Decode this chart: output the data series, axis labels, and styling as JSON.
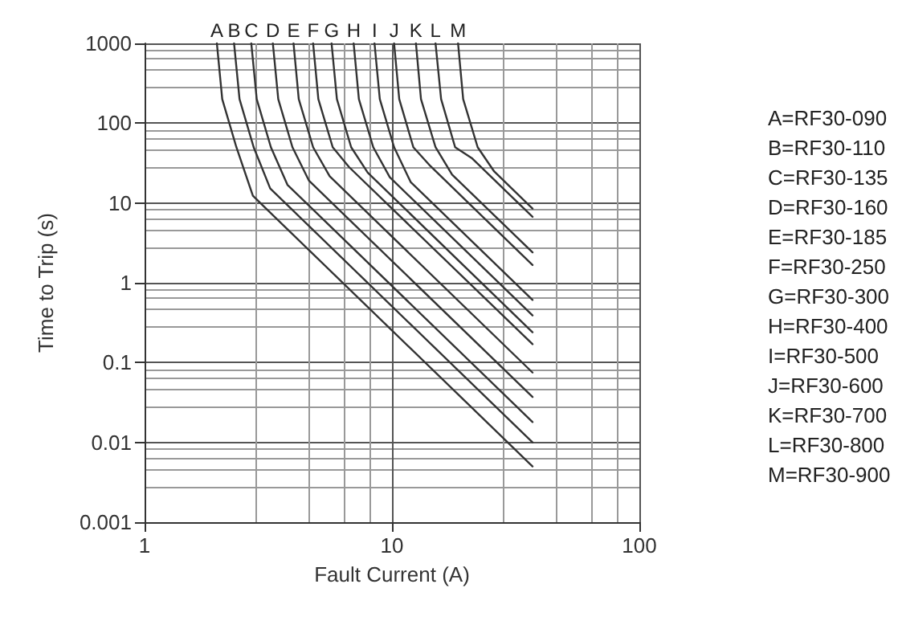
{
  "chart_data": {
    "type": "line",
    "xlabel": "Fault Current (A)",
    "ylabel": "Time to Trip (s)",
    "log": "xy",
    "grid": true,
    "marker": "none",
    "line_style": "solid",
    "legend": false,
    "xlim": [
      1,
      100
    ],
    "xticks": [
      1,
      10,
      100
    ],
    "ylim": [
      0.001,
      1000
    ],
    "yticks": [
      0.001,
      0.01,
      0.1,
      1,
      10,
      100,
      1000
    ],
    "series": [
      {
        "name": "A",
        "color": "#333333",
        "x": [
          1.96,
          2.06,
          2.35,
          2.74,
          37
        ],
        "values": [
          1000,
          200,
          50,
          12.3,
          0.005
        ]
      },
      {
        "name": "B",
        "color": "#333333",
        "x": [
          2.3,
          2.42,
          2.76,
          3.22,
          37
        ],
        "values": [
          1000,
          200,
          50,
          15.2,
          0.01
        ]
      },
      {
        "name": "C",
        "color": "#333333",
        "x": [
          2.7,
          2.84,
          3.24,
          3.78,
          37
        ],
        "values": [
          1000,
          200,
          50,
          16.9,
          0.018
        ]
      },
      {
        "name": "D",
        "color": "#333333",
        "x": [
          3.3,
          3.47,
          3.96,
          4.62,
          37
        ],
        "values": [
          1000,
          200,
          50,
          19,
          0.037
        ]
      },
      {
        "name": "E",
        "color": "#333333",
        "x": [
          4,
          4.2,
          4.8,
          5.6,
          37
        ],
        "values": [
          1000,
          200,
          50,
          21.6,
          0.075
        ]
      },
      {
        "name": "F",
        "color": "#333333",
        "x": [
          4.8,
          5.04,
          5.76,
          6.72,
          37
        ],
        "values": [
          1000,
          200,
          50,
          28,
          0.17
        ]
      },
      {
        "name": "G",
        "color": "#333333",
        "x": [
          5.7,
          5.99,
          6.84,
          7.98,
          37
        ],
        "values": [
          1000,
          200,
          50,
          24,
          0.24
        ]
      },
      {
        "name": "H",
        "color": "#333333",
        "x": [
          7,
          7.35,
          8.4,
          9.8,
          37
        ],
        "values": [
          1000,
          200,
          50,
          21,
          0.39
        ]
      },
      {
        "name": "I",
        "color": "#333333",
        "x": [
          8.5,
          8.93,
          10.2,
          11.9,
          37
        ],
        "values": [
          1000,
          200,
          50,
          18.3,
          0.61
        ]
      },
      {
        "name": "J",
        "color": "#333333",
        "x": [
          10.2,
          10.7,
          12.2,
          14.3,
          37
        ],
        "values": [
          1000,
          200,
          50,
          29,
          1.67
        ]
      },
      {
        "name": "K",
        "color": "#333333",
        "x": [
          12.5,
          13.1,
          15,
          17.5,
          37
        ],
        "values": [
          1000,
          200,
          50,
          22.7,
          2.4
        ]
      },
      {
        "name": "L",
        "color": "#333333",
        "x": [
          15,
          15.8,
          18,
          21,
          37
        ],
        "values": [
          1000,
          200,
          50,
          36.6,
          6.7
        ]
      },
      {
        "name": "M",
        "color": "#333333",
        "x": [
          18.5,
          19.4,
          22.2,
          25.9,
          37
        ],
        "values": [
          1000,
          200,
          50,
          24.8,
          8.5
        ]
      }
    ],
    "annotations": [
      "A=RF30-090",
      "B=RF30-110",
      "C=RF30-135",
      "D=RF30-160",
      "E=RF30-185",
      "F=RF30-250",
      "G=RF30-300",
      "H=RF30-400",
      "I=RF30-500",
      "J=RF30-600",
      "K=RF30-700",
      "L=RF30-800",
      "M=RF30-900"
    ]
  }
}
